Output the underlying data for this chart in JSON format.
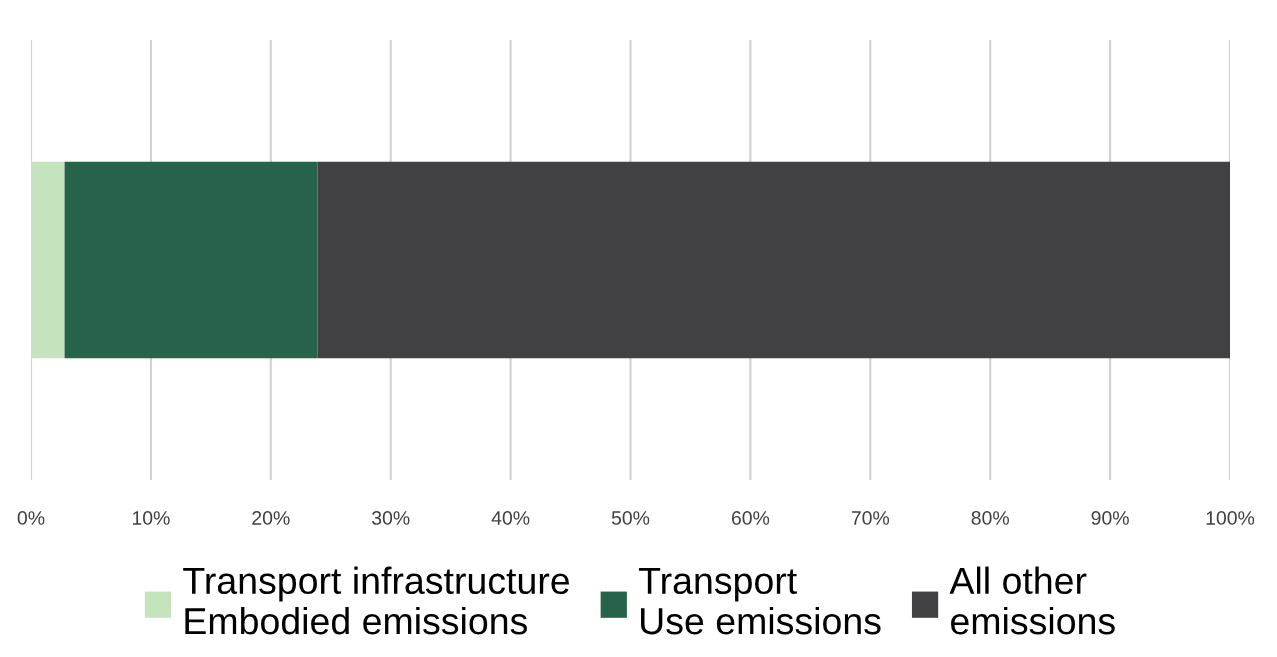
{
  "chart_data": {
    "type": "bar",
    "orientation": "horizontal",
    "stacked": true,
    "categories": [
      null
    ],
    "series": [
      {
        "name": "Transport infrastructure\nEmbodied emissions",
        "color": "#c5e3bd",
        "values": [
          2.8
        ]
      },
      {
        "name": "Transport\nUse emissions",
        "color": "#26634a",
        "values": [
          21.1
        ]
      },
      {
        "name": "All other\nemissions",
        "color": "#414042",
        "values": [
          76.1
        ]
      }
    ],
    "xlim": [
      0,
      100
    ],
    "xticks": [
      {
        "value": 0,
        "label": "0%"
      },
      {
        "value": 10,
        "label": "10%"
      },
      {
        "value": 20,
        "label": "20%"
      },
      {
        "value": 30,
        "label": "30%"
      },
      {
        "value": 40,
        "label": "40%"
      },
      {
        "value": 50,
        "label": "50%"
      },
      {
        "value": 60,
        "label": "60%"
      },
      {
        "value": 70,
        "label": "70%"
      },
      {
        "value": 80,
        "label": "80%"
      },
      {
        "value": 90,
        "label": "90%"
      },
      {
        "value": 100,
        "label": "100%"
      }
    ],
    "grid": "x",
    "legend": "bottom",
    "tick_labels": "x"
  }
}
